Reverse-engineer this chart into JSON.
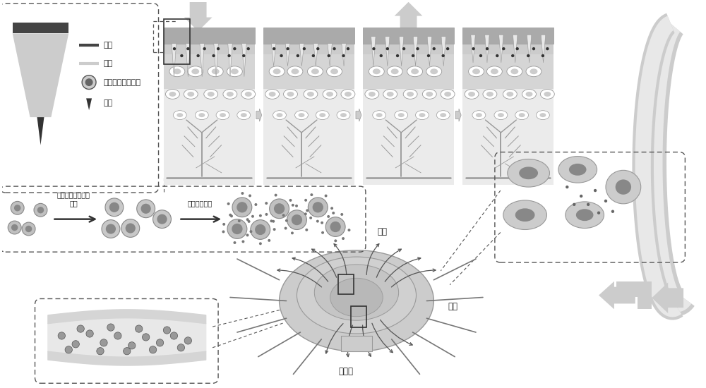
{
  "bg_color": "#ffffff",
  "gray_dark": "#555555",
  "gray_mid": "#999999",
  "gray_light": "#aaaaaa",
  "gray_vlight": "#cccccc",
  "gray_lightest": "#e8e8e8",
  "gray_skin": "#d5d5d5",
  "gray_derm": "#ebebeb",
  "dashed_box_color": "#555555",
  "text_color": "#222222",
  "labels": {
    "coating": "被衆",
    "body": "主体",
    "magnetic_scaffold": "磁性金属有机骨架",
    "needle_tip": "针尖",
    "scaffold_growth": "磁性金属有机骨架\n生长",
    "adsorb_active": "吸附活性组分",
    "magnetic_field": "磁场",
    "magnetic_material": "磁性物",
    "tumor": "肿瘤"
  }
}
